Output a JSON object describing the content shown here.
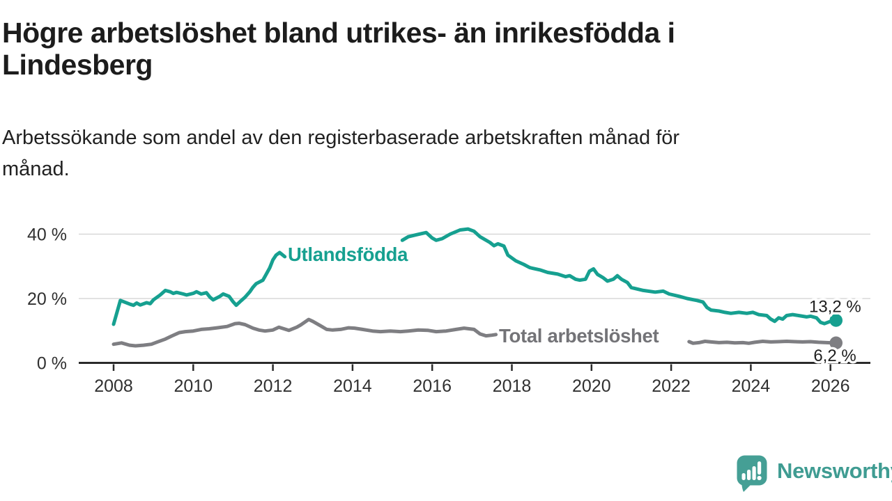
{
  "header": {
    "title": "Högre arbetslöshet bland utrikes- än inrikesfödda i\nLindesberg",
    "subtitle": "Arbetssökande som andel av den registerbaserade arbetskraften månad för\nmånad."
  },
  "chart_data": {
    "type": "line",
    "title": "Högre arbetslöshet bland utrikes- än inrikesfödda i Lindesberg",
    "subtitle": "Arbetssökande som andel av den registerbaserade arbetskraften månad för månad.",
    "xlabel": "",
    "ylabel": "",
    "grid": "horizontal-only",
    "legend_position": "inline-labels-on-chart",
    "x_range": [
      2007.2,
      2027.0
    ],
    "ylim": [
      0,
      45
    ],
    "x_ticks": [
      2008,
      2010,
      2012,
      2014,
      2016,
      2018,
      2020,
      2022,
      2024,
      2026
    ],
    "x_tick_labels": [
      "2008",
      "2010",
      "2012",
      "2014",
      "2016",
      "2018",
      "2020",
      "2022",
      "2024",
      "2026"
    ],
    "y_ticks": [
      0,
      20,
      40
    ],
    "y_tick_labels": [
      "0 %",
      "20 %",
      "40 %"
    ],
    "axis_color": "#2b2b2b",
    "gridline_color": "#d8d8d8",
    "tick_label_color": "#303030",
    "series": [
      {
        "name": "Utlandsfödda",
        "label": "Utlandsfödda",
        "color": "#16a090",
        "end_label": "13,2 %",
        "end_value": 13.2,
        "note": "line hidden behind inline label between ~2012.3 and ~2015.25",
        "segments": [
          [
            [
              2008.0,
              12.0
            ],
            [
              2008.08,
              15.5
            ],
            [
              2008.17,
              19.4
            ],
            [
              2008.25,
              19.0
            ],
            [
              2008.42,
              18.2
            ],
            [
              2008.5,
              17.9
            ],
            [
              2008.58,
              18.6
            ],
            [
              2008.67,
              18.0
            ],
            [
              2008.83,
              18.7
            ],
            [
              2008.92,
              18.4
            ],
            [
              2009.0,
              19.6
            ],
            [
              2009.17,
              21.1
            ],
            [
              2009.3,
              22.5
            ],
            [
              2009.42,
              22.1
            ],
            [
              2009.5,
              21.6
            ],
            [
              2009.58,
              21.9
            ],
            [
              2009.75,
              21.4
            ],
            [
              2009.83,
              21.1
            ],
            [
              2010.0,
              21.6
            ],
            [
              2010.08,
              22.1
            ],
            [
              2010.2,
              21.4
            ],
            [
              2010.33,
              21.8
            ],
            [
              2010.42,
              20.4
            ],
            [
              2010.5,
              19.6
            ],
            [
              2010.67,
              20.7
            ],
            [
              2010.75,
              21.4
            ],
            [
              2010.9,
              20.7
            ],
            [
              2011.0,
              19.0
            ],
            [
              2011.08,
              17.9
            ],
            [
              2011.2,
              19.3
            ],
            [
              2011.3,
              20.4
            ],
            [
              2011.42,
              22.1
            ],
            [
              2011.5,
              23.5
            ],
            [
              2011.58,
              24.6
            ],
            [
              2011.75,
              25.7
            ],
            [
              2011.83,
              27.5
            ],
            [
              2011.92,
              29.5
            ],
            [
              2012.0,
              32.0
            ],
            [
              2012.08,
              33.5
            ],
            [
              2012.17,
              34.3
            ],
            [
              2012.3,
              33.0
            ]
          ],
          [
            [
              2015.25,
              38.1
            ],
            [
              2015.4,
              39.2
            ],
            [
              2015.6,
              39.8
            ],
            [
              2015.85,
              40.5
            ],
            [
              2016.0,
              38.8
            ],
            [
              2016.1,
              38.1
            ],
            [
              2016.25,
              38.6
            ],
            [
              2016.45,
              40.0
            ],
            [
              2016.7,
              41.3
            ],
            [
              2016.9,
              41.6
            ],
            [
              2017.05,
              40.9
            ],
            [
              2017.2,
              39.2
            ],
            [
              2017.45,
              37.4
            ],
            [
              2017.55,
              36.4
            ],
            [
              2017.65,
              37.0
            ],
            [
              2017.8,
              36.3
            ],
            [
              2017.9,
              33.5
            ],
            [
              2018.1,
              31.7
            ],
            [
              2018.3,
              30.6
            ],
            [
              2018.45,
              29.6
            ],
            [
              2018.7,
              28.9
            ],
            [
              2018.9,
              28.1
            ],
            [
              2019.15,
              27.6
            ],
            [
              2019.35,
              26.8
            ],
            [
              2019.45,
              27.1
            ],
            [
              2019.6,
              26.0
            ],
            [
              2019.7,
              25.7
            ],
            [
              2019.85,
              26.0
            ],
            [
              2019.95,
              28.5
            ],
            [
              2020.05,
              29.2
            ],
            [
              2020.15,
              27.5
            ],
            [
              2020.3,
              26.4
            ],
            [
              2020.4,
              25.4
            ],
            [
              2020.55,
              26.0
            ],
            [
              2020.65,
              27.1
            ],
            [
              2020.75,
              26.0
            ],
            [
              2020.9,
              25.0
            ],
            [
              2021.0,
              23.4
            ],
            [
              2021.3,
              22.5
            ],
            [
              2021.6,
              22.0
            ],
            [
              2021.8,
              22.3
            ],
            [
              2021.95,
              21.4
            ],
            [
              2022.2,
              20.7
            ],
            [
              2022.4,
              20.0
            ],
            [
              2022.65,
              19.4
            ],
            [
              2022.8,
              18.9
            ],
            [
              2022.9,
              17.2
            ],
            [
              2023.0,
              16.4
            ],
            [
              2023.2,
              16.1
            ],
            [
              2023.35,
              15.7
            ],
            [
              2023.5,
              15.4
            ],
            [
              2023.7,
              15.7
            ],
            [
              2023.9,
              15.4
            ],
            [
              2024.05,
              15.7
            ],
            [
              2024.2,
              15.0
            ],
            [
              2024.4,
              14.7
            ],
            [
              2024.5,
              13.6
            ],
            [
              2024.6,
              12.9
            ],
            [
              2024.7,
              14.0
            ],
            [
              2024.8,
              13.6
            ],
            [
              2024.9,
              14.7
            ],
            [
              2025.05,
              15.0
            ],
            [
              2025.2,
              14.7
            ],
            [
              2025.4,
              14.3
            ],
            [
              2025.5,
              14.5
            ],
            [
              2025.65,
              14.0
            ],
            [
              2025.75,
              12.6
            ],
            [
              2025.85,
              12.2
            ],
            [
              2026.0,
              12.9
            ],
            [
              2026.14,
              13.2
            ]
          ]
        ]
      },
      {
        "name": "Total arbetslöshet",
        "label": "Total arbetslöshet",
        "color": "#7e7e82",
        "label_color": "#737377",
        "end_label": "6,2 %",
        "end_value": 6.2,
        "note": "line hidden behind inline label between ~2017.6 and ~2022.45",
        "segments": [
          [
            [
              2008.0,
              5.8
            ],
            [
              2008.2,
              6.2
            ],
            [
              2008.4,
              5.5
            ],
            [
              2008.55,
              5.3
            ],
            [
              2008.75,
              5.5
            ],
            [
              2008.95,
              5.8
            ],
            [
              2009.1,
              6.5
            ],
            [
              2009.3,
              7.4
            ],
            [
              2009.45,
              8.3
            ],
            [
              2009.65,
              9.4
            ],
            [
              2009.8,
              9.7
            ],
            [
              2010.0,
              9.9
            ],
            [
              2010.2,
              10.4
            ],
            [
              2010.4,
              10.6
            ],
            [
              2010.6,
              10.9
            ],
            [
              2010.85,
              11.3
            ],
            [
              2011.05,
              12.2
            ],
            [
              2011.15,
              12.3
            ],
            [
              2011.3,
              11.9
            ],
            [
              2011.5,
              10.8
            ],
            [
              2011.65,
              10.2
            ],
            [
              2011.8,
              9.9
            ],
            [
              2012.0,
              10.2
            ],
            [
              2012.15,
              11.1
            ],
            [
              2012.4,
              10.1
            ],
            [
              2012.6,
              11.1
            ],
            [
              2012.7,
              11.8
            ],
            [
              2012.9,
              13.5
            ],
            [
              2013.0,
              12.9
            ],
            [
              2013.2,
              11.5
            ],
            [
              2013.35,
              10.4
            ],
            [
              2013.5,
              10.2
            ],
            [
              2013.7,
              10.4
            ],
            [
              2013.9,
              10.9
            ],
            [
              2014.05,
              10.8
            ],
            [
              2014.25,
              10.4
            ],
            [
              2014.5,
              9.9
            ],
            [
              2014.7,
              9.7
            ],
            [
              2014.95,
              9.9
            ],
            [
              2015.2,
              9.7
            ],
            [
              2015.4,
              9.9
            ],
            [
              2015.65,
              10.2
            ],
            [
              2015.9,
              10.1
            ],
            [
              2016.1,
              9.7
            ],
            [
              2016.35,
              9.9
            ],
            [
              2016.6,
              10.4
            ],
            [
              2016.8,
              10.8
            ],
            [
              2017.05,
              10.4
            ],
            [
              2017.2,
              9.0
            ],
            [
              2017.35,
              8.4
            ],
            [
              2017.5,
              8.6
            ],
            [
              2017.6,
              8.8
            ]
          ],
          [
            [
              2022.45,
              6.6
            ],
            [
              2022.55,
              6.1
            ],
            [
              2022.7,
              6.3
            ],
            [
              2022.85,
              6.7
            ],
            [
              2023.0,
              6.5
            ],
            [
              2023.2,
              6.3
            ],
            [
              2023.4,
              6.4
            ],
            [
              2023.6,
              6.2
            ],
            [
              2023.8,
              6.3
            ],
            [
              2023.95,
              6.1
            ],
            [
              2024.1,
              6.4
            ],
            [
              2024.3,
              6.7
            ],
            [
              2024.5,
              6.5
            ],
            [
              2024.7,
              6.6
            ],
            [
              2024.9,
              6.7
            ],
            [
              2025.1,
              6.6
            ],
            [
              2025.3,
              6.5
            ],
            [
              2025.5,
              6.6
            ],
            [
              2025.7,
              6.4
            ],
            [
              2025.9,
              6.3
            ],
            [
              2026.05,
              6.2
            ],
            [
              2026.14,
              6.2
            ]
          ]
        ]
      }
    ]
  },
  "branding": {
    "logo_text": "Newsworthy",
    "logo_icon": "speech-bubble-bar-chart-exclamation",
    "logo_icon_color": "#459f95",
    "logo_text_color": "#3f9c92"
  }
}
